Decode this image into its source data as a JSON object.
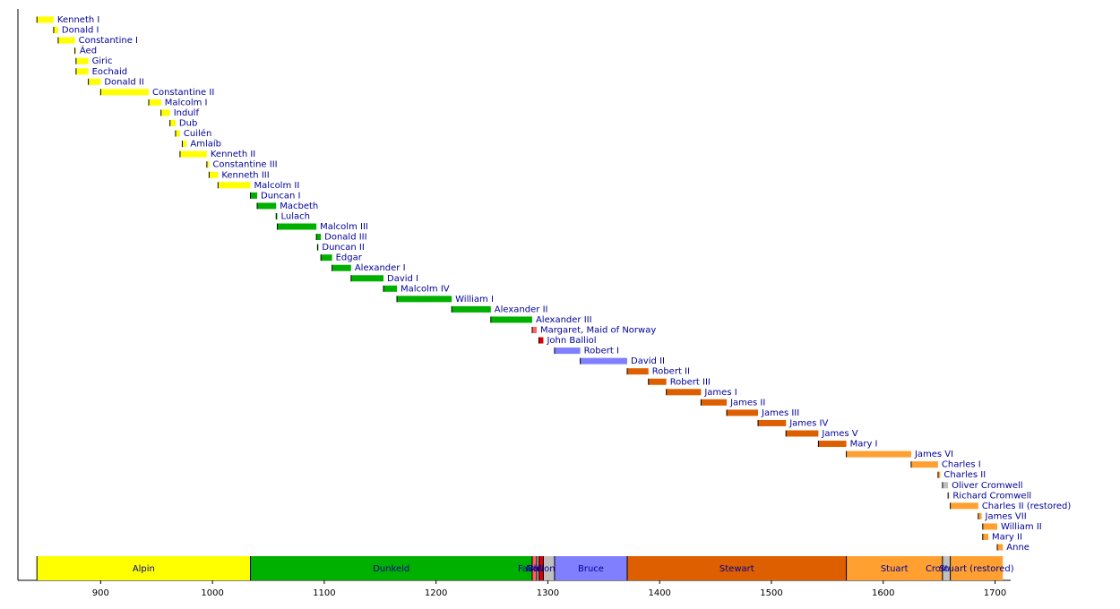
{
  "chart_data": {
    "type": "timeline",
    "categories": [
      "Kenneth I",
      "Donald I",
      "Constantine I",
      "Áed",
      "Giric",
      "Eochaid",
      "Donald II",
      "Constantine II",
      "Malcolm I",
      "Indulf",
      "Dub",
      "Cuilén",
      "Amlaíb",
      "Kenneth II",
      "Constantine III",
      "Kenneth III",
      "Malcolm II",
      "Duncan I",
      "Macbeth",
      "Lulach",
      "Malcolm III",
      "Donald III",
      "Duncan II",
      "Edgar",
      "Alexander I",
      "David I",
      "Malcolm IV",
      "William I",
      "Alexander II",
      "Alexander III",
      "Margaret, Maid of Norway",
      "John Balliol",
      "Robert I",
      "David II",
      "Robert II",
      "Robert III",
      "James I",
      "James II",
      "James III",
      "James IV",
      "James V",
      "Mary I",
      "James VI",
      "Charles I",
      "Charles II",
      "Oliver Cromwell",
      "Richard Cromwell",
      "Charles II (restored)",
      "James VII",
      "William II",
      "Mary II",
      "Anne"
    ],
    "starts": [
      843,
      858,
      862,
      877,
      878,
      878,
      889,
      900,
      943,
      954,
      962,
      967,
      973,
      971,
      995,
      997,
      1005,
      1034,
      1040,
      1057,
      1058,
      1093,
      1094,
      1097,
      1107,
      1124,
      1153,
      1165,
      1214,
      1249,
      1286,
      1292,
      1306,
      1329,
      1371,
      1390,
      1406,
      1437,
      1460,
      1488,
      1513,
      1542,
      1567,
      1625,
      1649,
      1653,
      1658,
      1660,
      1685,
      1689,
      1689,
      1702
    ],
    "ends": [
      858,
      862,
      877,
      878,
      889,
      889,
      900,
      943,
      954,
      962,
      967,
      971,
      977,
      995,
      997,
      1005,
      1034,
      1040,
      1057,
      1058,
      1093,
      1097,
      1094,
      1107,
      1124,
      1153,
      1165,
      1214,
      1249,
      1286,
      1290,
      1296,
      1329,
      1371,
      1390,
      1406,
      1437,
      1460,
      1488,
      1513,
      1542,
      1567,
      1625,
      1649,
      1651,
      1658,
      1659,
      1685,
      1688,
      1702,
      1694,
      1707
    ],
    "colors": [
      "#ffff00",
      "#ffff00",
      "#ffff00",
      "#ffff00",
      "#ffff00",
      "#ffff00",
      "#ffff00",
      "#ffff00",
      "#ffff00",
      "#ffff00",
      "#ffff00",
      "#ffff00",
      "#ffff00",
      "#ffff00",
      "#ffff00",
      "#ffff00",
      "#ffff00",
      "#00b000",
      "#00b000",
      "#00b000",
      "#00b000",
      "#00b000",
      "#00b000",
      "#00b000",
      "#00b000",
      "#00b000",
      "#00b000",
      "#00b000",
      "#00b000",
      "#00b000",
      "#ff6060",
      "#dd0000",
      "#8080ff",
      "#8080ff",
      "#dd5f00",
      "#dd5f00",
      "#dd5f00",
      "#dd5f00",
      "#dd5f00",
      "#dd5f00",
      "#dd5f00",
      "#dd5f00",
      "#ffa030",
      "#ffa030",
      "#ffa030",
      "#c0c0c0",
      "#c0c0c0",
      "#ffa030",
      "#ffa030",
      "#ffa030",
      "#ffa030",
      "#ffa030"
    ],
    "houses": [
      {
        "name": "Alpin",
        "start": 843,
        "end": 1034,
        "color": "#ffff00"
      },
      {
        "name": "Dunkeld",
        "start": 1034,
        "end": 1286,
        "color": "#00b000"
      },
      {
        "name": "Fairhair",
        "start": 1286,
        "end": 1290,
        "color": "#ff6060"
      },
      {
        "name": "None",
        "start": 1290,
        "end": 1292,
        "color": "#c0c0c0"
      },
      {
        "name": "Balliol",
        "start": 1292,
        "end": 1296,
        "color": "#dd0000"
      },
      {
        "name": "None",
        "start": 1296,
        "end": 1306,
        "color": "#c0c0c0"
      },
      {
        "name": "Bruce",
        "start": 1306,
        "end": 1371,
        "color": "#8080ff"
      },
      {
        "name": "Stewart",
        "start": 1371,
        "end": 1567,
        "color": "#dd5f00"
      },
      {
        "name": "Stuart",
        "start": 1567,
        "end": 1653,
        "color": "#ffa030"
      },
      {
        "name": "Cromwell",
        "start": 1653,
        "end": 1660,
        "color": "#c0c0c0"
      },
      {
        "name": "Stuart (restored)",
        "start": 1660,
        "end": 1707,
        "color": "#ffa030"
      }
    ],
    "xlim": [
      826,
      1714
    ],
    "xticks": [
      900,
      1000,
      1100,
      1200,
      1300,
      1400,
      1500,
      1600,
      1700
    ]
  }
}
